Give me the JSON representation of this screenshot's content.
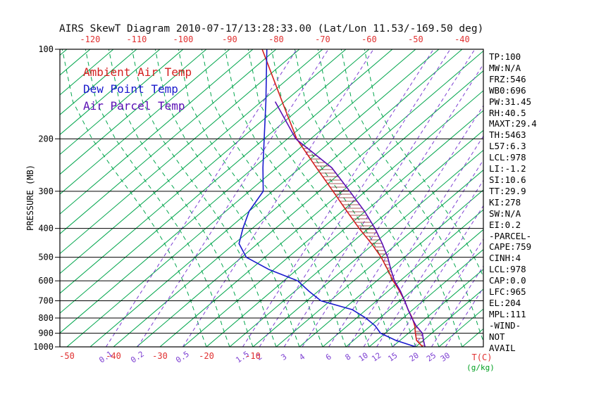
{
  "title": "AIRS SkewT Diagram 2010-07-17/13:28:33.00 (Lat/Lon 11.53/-169.50 deg)",
  "legend": [
    {
      "label": "Ambient Air Temp",
      "color": "#d42020"
    },
    {
      "label": "Dew Point Temp",
      "color": "#1a1acd"
    },
    {
      "label": "Air Parcel Temp",
      "color": "#5a0fb4"
    }
  ],
  "axes": {
    "pressure_label": "PRESSURE (MB)",
    "pressure_ticks": [
      100,
      200,
      300,
      400,
      500,
      600,
      700,
      800,
      900,
      1000
    ],
    "top_temp_ticks": [
      -120,
      -110,
      -100,
      -90,
      -80,
      -70,
      -60,
      -50,
      -40
    ],
    "bottom_temp_ticks": [
      -50,
      -40,
      -30,
      -20,
      -10
    ],
    "temp_unit_label": "T(C)",
    "mix_unit_label": "(g/kg)"
  },
  "stats": [
    "TP:100",
    "MW:N/A",
    "FRZ:546",
    "WB0:696",
    "PW:31.45",
    "RH:40.5",
    "MAXT:29.4",
    "TH:5463",
    "L57:6.3",
    "LCL:978",
    "LI:-1.2",
    "SI:10.6",
    "TT:29.9",
    "KI:278",
    "SW:N/A",
    "EI:0.2",
    "-PARCEL-",
    "CAPE:759",
    "CINH:4",
    "LCL:978",
    "CAP:0.0",
    "LFC:965",
    "EL:204",
    "MPL:111",
    "-WIND-",
    "NOT",
    "AVAIL"
  ],
  "colors": {
    "isotherm": "#00a54c",
    "moist_adiabat": "#00a54c",
    "mixing_ratio": "#7d3fd2",
    "isobar": "#000000",
    "hatch": "#8b2020",
    "axis_temp": "#e03030",
    "mix_label": "#7d3fd2",
    "unit_mix": "#00a020",
    "background": "#ffffff"
  },
  "chart_data": {
    "type": "line",
    "title": "AIRS SkewT Diagram (skew-T / log-P sounding)",
    "x_axis": {
      "label": "T(C)",
      "skewed": true,
      "top_ticks": [
        -120,
        -110,
        -100,
        -90,
        -80,
        -70,
        -60,
        -50,
        -40
      ],
      "bottom_ticks": [
        -50,
        -40,
        -30,
        -20,
        -10
      ]
    },
    "y_axis": {
      "label": "PRESSURE (MB)",
      "scale": "log",
      "ticks": [
        100,
        200,
        300,
        400,
        500,
        600,
        700,
        800,
        900,
        1000
      ],
      "range": [
        100,
        1000
      ]
    },
    "series": [
      {
        "name": "Ambient Air Temp",
        "color": "#d42020",
        "points_p_t": [
          [
            1000,
            26.5
          ],
          [
            950,
            23.5
          ],
          [
            900,
            21.5
          ],
          [
            850,
            19.5
          ],
          [
            800,
            17
          ],
          [
            750,
            14
          ],
          [
            700,
            11
          ],
          [
            650,
            7.5
          ],
          [
            600,
            3.5
          ],
          [
            550,
            -0.5
          ],
          [
            500,
            -5
          ],
          [
            450,
            -10.5
          ],
          [
            400,
            -17
          ],
          [
            350,
            -24
          ],
          [
            300,
            -32
          ],
          [
            250,
            -41.5
          ],
          [
            200,
            -53
          ],
          [
            150,
            -65.5
          ],
          [
            100,
            -83
          ]
        ]
      },
      {
        "name": "Dew Point Temp",
        "color": "#1a1acd",
        "points_p_t": [
          [
            1000,
            25
          ],
          [
            950,
            19
          ],
          [
            900,
            14
          ],
          [
            850,
            11
          ],
          [
            800,
            7
          ],
          [
            750,
            2
          ],
          [
            700,
            -7
          ],
          [
            650,
            -12
          ],
          [
            600,
            -17
          ],
          [
            550,
            -26
          ],
          [
            500,
            -34
          ],
          [
            450,
            -39
          ],
          [
            400,
            -42
          ],
          [
            350,
            -45
          ],
          [
            300,
            -47
          ],
          [
            250,
            -53
          ],
          [
            200,
            -60
          ],
          [
            150,
            -69
          ],
          [
            100,
            -82
          ]
        ]
      },
      {
        "name": "Air Parcel Temp",
        "color": "#5a0fb4",
        "points_p_t": [
          [
            1000,
            27
          ],
          [
            950,
            25
          ],
          [
            900,
            23
          ],
          [
            850,
            19.8
          ],
          [
            800,
            16.9
          ],
          [
            750,
            14
          ],
          [
            700,
            11
          ],
          [
            650,
            7.7
          ],
          [
            600,
            3.8
          ],
          [
            550,
            0.2
          ],
          [
            500,
            -3.6
          ],
          [
            450,
            -8.2
          ],
          [
            400,
            -13.6
          ],
          [
            350,
            -20.2
          ],
          [
            300,
            -28.4
          ],
          [
            250,
            -38.2
          ],
          [
            200,
            -53.2
          ],
          [
            150,
            -67
          ]
        ]
      }
    ],
    "isotherms": {
      "min": -125,
      "max": 45,
      "step": 5
    },
    "mixing_ratios": [
      {
        "w": "0.1",
        "td": -41.6
      },
      {
        "w": "0.2",
        "td": -34.8
      },
      {
        "w": "0.5",
        "td": -25.1
      },
      {
        "w": "1.5",
        "td": -12.2
      },
      {
        "w": "2",
        "td": -8.6
      },
      {
        "w": "3",
        "td": -3.3
      },
      {
        "w": "4",
        "td": 0.6
      },
      {
        "w": "6",
        "td": 6.3
      },
      {
        "w": "8",
        "td": 10.5
      },
      {
        "w": "10",
        "td": 13.8
      },
      {
        "w": "12",
        "td": 16.6
      },
      {
        "w": "15",
        "td": 20.1
      },
      {
        "w": "20",
        "td": 24.7
      },
      {
        "w": "25",
        "td": 28.4
      },
      {
        "w": "30",
        "td": 31.4
      }
    ],
    "moist_adiabats": {
      "surface_temps": [
        -20,
        -15,
        -10,
        -5,
        0,
        5,
        10,
        15,
        20,
        25,
        30,
        35,
        40,
        45
      ],
      "pressures": [
        1000,
        950,
        900,
        850,
        800,
        750,
        700,
        650,
        600,
        550,
        500,
        450,
        400,
        350,
        300,
        250,
        200,
        150,
        100
      ],
      "delta_t": [
        0,
        -2.2,
        -4.5,
        -6.9,
        -9.4,
        -12.1,
        -15,
        -18.2,
        -21.7,
        -25.6,
        -30,
        -35,
        -40.8,
        -47.6,
        -55.7,
        -65.4,
        -77,
        -90.5,
        -106
      ]
    },
    "cape_hatch": true
  }
}
